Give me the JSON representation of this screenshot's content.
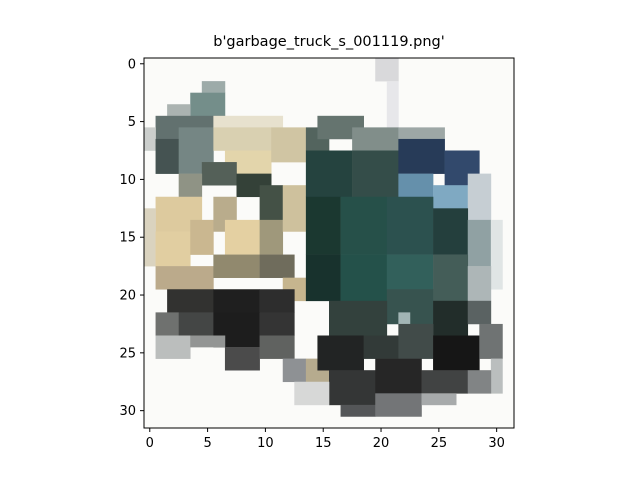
{
  "figure": {
    "title": "b'garbage_truck_s_001119.png'"
  },
  "image": {
    "subject": "pixelated photo of a garbage truck",
    "resolution": [
      32,
      32
    ],
    "palette": {
      "background": "#f8f8f6",
      "tan": "#d9c79c",
      "dark_teal": "#1f4a46",
      "navy": "#2a3e5c",
      "light_blue": "#7aa6c0",
      "black": "#141414",
      "grey": "#8a8f8e"
    }
  },
  "axes": {
    "x_ticks": [
      "0",
      "5",
      "10",
      "15",
      "20",
      "25",
      "30"
    ],
    "y_ticks": [
      "0",
      "5",
      "10",
      "15",
      "20",
      "25",
      "30"
    ],
    "xlim": [
      -0.5,
      31.5
    ],
    "ylim": [
      31.5,
      -0.5
    ]
  }
}
